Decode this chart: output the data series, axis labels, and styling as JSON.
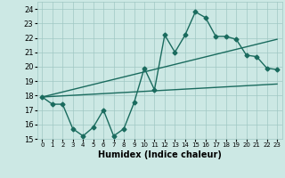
{
  "xlabel": "Humidex (Indice chaleur)",
  "xlim": [
    -0.5,
    23.5
  ],
  "ylim": [
    15,
    24.5
  ],
  "yticks": [
    15,
    16,
    17,
    18,
    19,
    20,
    21,
    22,
    23,
    24
  ],
  "xticks": [
    0,
    1,
    2,
    3,
    4,
    5,
    6,
    7,
    8,
    9,
    10,
    11,
    12,
    13,
    14,
    15,
    16,
    17,
    18,
    19,
    20,
    21,
    22,
    23
  ],
  "bg_color": "#cce8e4",
  "grid_color": "#a0c8c4",
  "line_color": "#1a6b5e",
  "line1_x": [
    0,
    1,
    2,
    3,
    4,
    5,
    6,
    7,
    8,
    9,
    10,
    11,
    12,
    13,
    14,
    15,
    16,
    17,
    18,
    19,
    20,
    21,
    22,
    23
  ],
  "line1_y": [
    17.9,
    17.4,
    17.4,
    15.7,
    15.2,
    15.8,
    17.0,
    15.2,
    15.7,
    17.5,
    19.9,
    18.4,
    22.2,
    21.0,
    22.2,
    23.8,
    23.4,
    22.1,
    22.1,
    21.9,
    20.8,
    20.7,
    19.9,
    19.8
  ],
  "line2_x": [
    0,
    23
  ],
  "line2_y": [
    17.9,
    21.9
  ],
  "line3_x": [
    0,
    23
  ],
  "line3_y": [
    17.9,
    18.8
  ],
  "markersize": 2.5,
  "linewidth": 1.0
}
